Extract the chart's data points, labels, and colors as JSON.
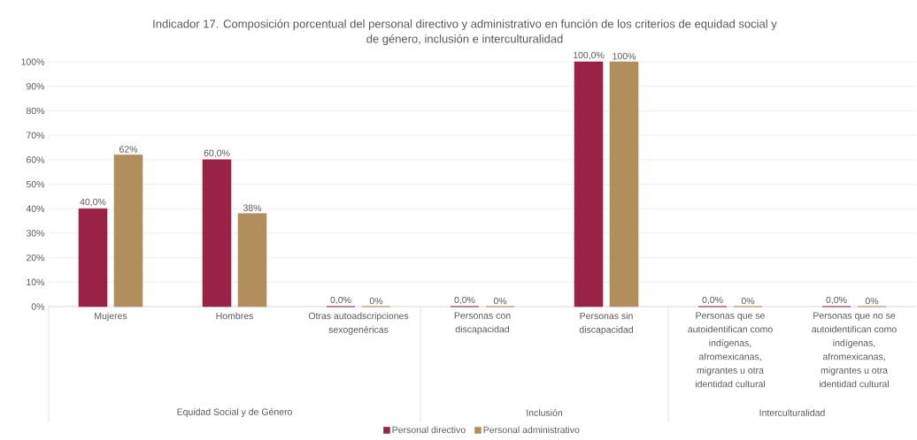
{
  "chart_data": {
    "type": "bar",
    "title": "Indicador 17. Composición porcentual del personal directivo y administrativo en función de los criterios de equidad social y de género, inclusión e interculturalidad",
    "categories": [
      "Mujeres",
      "Hombres",
      "Otras autoadscripciones sexogenéricas",
      "Personas con discapacidad",
      "Personas sin discapacidad",
      "Personas que se autoidentifican como indígenas, afromexicanas, migrantes u otra identidad cultural",
      "Personas que no se autoidentifican como indígenas, afromexicanas, migrantes u otra identidad cultural"
    ],
    "series": [
      {
        "name": "Personal directivo",
        "color": "#9b2247",
        "values": [
          40.0,
          60.0,
          0,
          0,
          100.0,
          0,
          0
        ],
        "value_labels": [
          "40,0%",
          "60,0%",
          "0,0%",
          "0,0%",
          "100,0%",
          "0,0%",
          "0,0%"
        ]
      },
      {
        "name": "Personal administrativo",
        "color": "#b38e5d",
        "values": [
          62,
          38,
          0,
          0,
          100,
          0,
          0
        ],
        "value_labels": [
          "62%",
          "38%",
          "0%",
          "0%",
          "100%",
          "0%",
          "0%"
        ]
      }
    ],
    "ylim": [
      0,
      100
    ],
    "yticks": [
      {
        "value": 0,
        "label": "0%"
      },
      {
        "value": 10,
        "label": "10%"
      },
      {
        "value": 20,
        "label": "20%"
      },
      {
        "value": 30,
        "label": "30%"
      },
      {
        "value": 40,
        "label": "40%"
      },
      {
        "value": 50,
        "label": "50%"
      },
      {
        "value": 60,
        "label": "60%"
      },
      {
        "value": 70,
        "label": "70%"
      },
      {
        "value": 80,
        "label": "80%"
      },
      {
        "value": 90,
        "label": "90%"
      },
      {
        "value": 100,
        "label": "100%"
      }
    ],
    "grid": "y",
    "legend": "bottom",
    "annotations": [
      "Equidad Social y de Género",
      "Inclusión",
      "Interculturalidad"
    ]
  }
}
